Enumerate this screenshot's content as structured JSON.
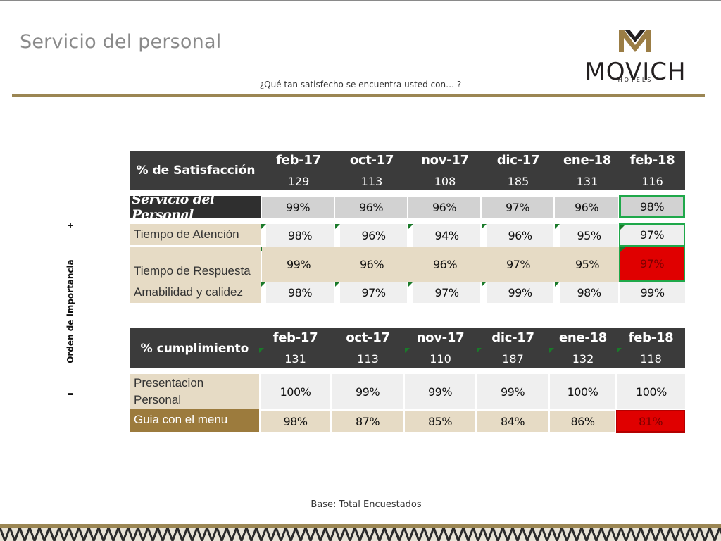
{
  "header": {
    "title": "Servicio del personal",
    "subtitle": "¿Qué tan satisfecho se encuentra usted con… ?",
    "logo_word": "MOVICH",
    "logo_sub": "HOTELS"
  },
  "axis": {
    "label": "Orden de importancia",
    "plus": "+",
    "minus": "-"
  },
  "table1": {
    "header_label": "% de Satisfacción",
    "months": [
      "feb-17",
      "oct-17",
      "nov-17",
      "dic-17",
      "ene-18",
      "feb-18"
    ],
    "bases": [
      "129",
      "113",
      "108",
      "185",
      "131",
      "116"
    ],
    "rows": [
      {
        "label": "Servicio del Personal",
        "values": [
          "99%",
          "96%",
          "96%",
          "97%",
          "96%",
          "98%"
        ]
      },
      {
        "label": "Tiempo de Atención",
        "values": [
          "98%",
          "96%",
          "94%",
          "96%",
          "95%",
          "97%"
        ]
      },
      {
        "label": "Tiempo de Respuesta",
        "values": [
          "99%",
          "96%",
          "96%",
          "97%",
          "95%",
          "97%"
        ]
      },
      {
        "label": "Amabilidad y calidez",
        "values": [
          "98%",
          "97%",
          "97%",
          "99%",
          "98%",
          "99%"
        ]
      }
    ]
  },
  "table2": {
    "header_label": "% cumplimiento",
    "months": [
      "feb-17",
      "oct-17",
      "nov-17",
      "dic-17",
      "ene-18",
      "feb-18"
    ],
    "bases": [
      "131",
      "113",
      "110",
      "187",
      "132",
      "118"
    ],
    "rows": [
      {
        "label_line1": "Presentacion",
        "label_line2": "Personal",
        "values": [
          "100%",
          "99%",
          "99%",
          "99%",
          "100%",
          "100%"
        ]
      },
      {
        "label": "Guia con el menu",
        "values": [
          "98%",
          "87%",
          "85%",
          "84%",
          "86%",
          "81%"
        ]
      }
    ]
  },
  "footer": {
    "base": "Base: Total Encuestados"
  },
  "colors": {
    "header_bg": "#3b3b3b",
    "gold": "#9c7b3d",
    "beige": "#e6dbc5",
    "highlight_red": "#e00000",
    "highlight_green": "#1fa84a"
  }
}
